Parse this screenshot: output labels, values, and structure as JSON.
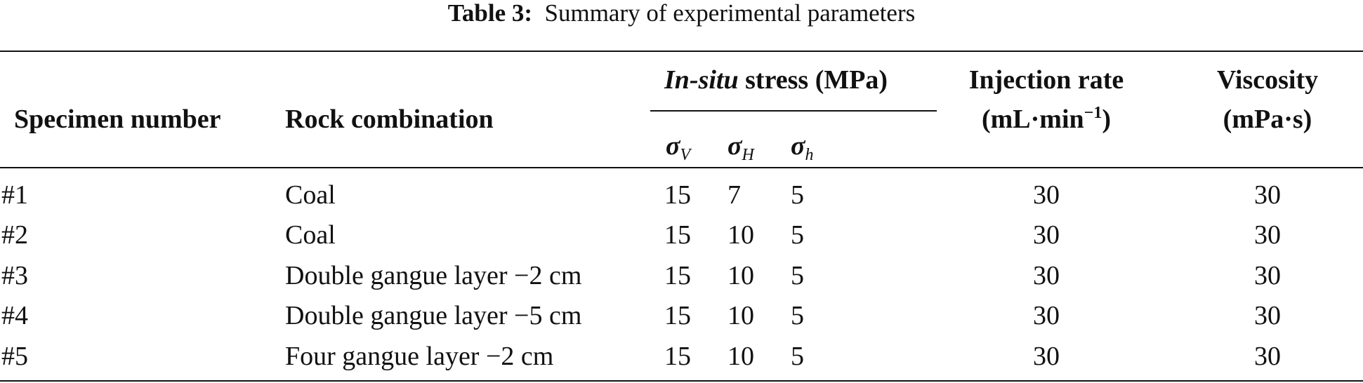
{
  "caption": {
    "label": "Table 3:",
    "text": "Summary of experimental parameters"
  },
  "table": {
    "headers": {
      "specimen": "Specimen number",
      "rock": "Rock combination",
      "stress_italic": "In-situ",
      "stress_rest": "stress (MPa)",
      "sigma_symbol": "σ",
      "sigma_v_sub": "V",
      "sigma_H_sub": "H",
      "sigma_h_sub": "h",
      "injection_line1": "Injection rate",
      "injection_line2_pre": "(mL·min",
      "injection_sup": "−1",
      "injection_line2_post": ")",
      "viscosity_line1": "Viscosity",
      "viscosity_line2": "(mPa·s)"
    },
    "rows": [
      {
        "specimen": "#1",
        "rock": "Coal",
        "sv": "15",
        "sH": "7",
        "sh": "5",
        "injection": "30",
        "viscosity": "30"
      },
      {
        "specimen": "#2",
        "rock": "Coal",
        "sv": "15",
        "sH": "10",
        "sh": "5",
        "injection": "30",
        "viscosity": "30"
      },
      {
        "specimen": "#3",
        "rock": "Double gangue layer −2 cm",
        "sv": "15",
        "sH": "10",
        "sh": "5",
        "injection": "30",
        "viscosity": "30"
      },
      {
        "specimen": "#4",
        "rock": "Double gangue layer −5 cm",
        "sv": "15",
        "sH": "10",
        "sh": "5",
        "injection": "30",
        "viscosity": "30"
      },
      {
        "specimen": "#5",
        "rock": "Four gangue layer −2 cm",
        "sv": "15",
        "sH": "10",
        "sh": "5",
        "injection": "30",
        "viscosity": "30"
      }
    ]
  }
}
